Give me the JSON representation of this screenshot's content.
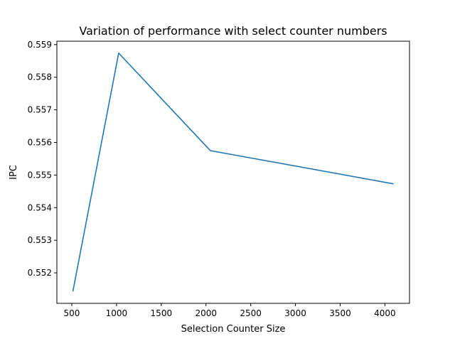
{
  "chart_data": {
    "type": "line",
    "title": "Variation of performance with select counter numbers",
    "xlabel": "Selection Counter Size",
    "ylabel": "IPC",
    "x": [
      512,
      1024,
      2048,
      4096
    ],
    "series": [
      {
        "values": [
          0.55143,
          0.55874,
          0.55575,
          0.55473
        ]
      }
    ],
    "xlim": [
      333.2,
      4274.8
    ],
    "ylim": [
      0.551065,
      0.559105
    ],
    "xticks": [
      500,
      1000,
      1500,
      2000,
      2500,
      3000,
      3500,
      4000
    ],
    "yticks": [
      0.552,
      0.553,
      0.554,
      0.555,
      0.556,
      0.557,
      0.558,
      0.559
    ],
    "grid": false,
    "line_color": "#1f77b4"
  }
}
